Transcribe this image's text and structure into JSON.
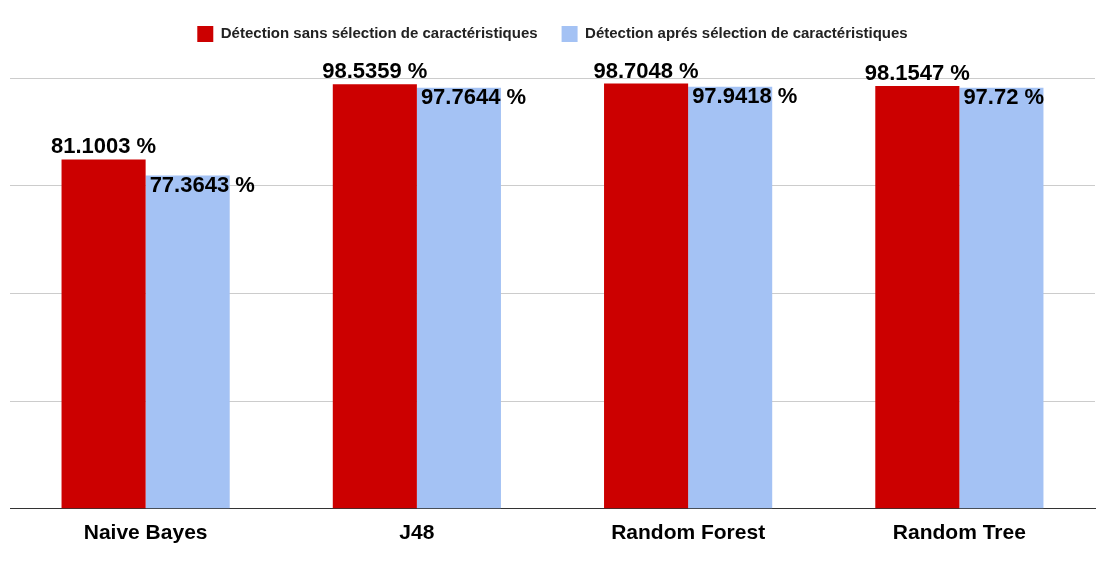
{
  "chart_data": {
    "type": "bar",
    "categories": [
      "Naive Bayes",
      "J48",
      "Random Forest",
      "Random Tree"
    ],
    "series": [
      {
        "name": "Détection sans sélection de caractéristiques",
        "color": "#cc0000",
        "values": [
          81.1003,
          98.5359,
          98.7048,
          98.1547
        ],
        "value_labels": [
          "81.1003 %",
          "98.5359 %",
          "98.7048 %",
          "98.1547 %"
        ]
      },
      {
        "name": "Détection aprés sélection de caractéristiques",
        "color": "#a4c2f4",
        "values": [
          77.3643,
          97.7644,
          97.9418,
          97.72
        ],
        "value_labels": [
          "77.3643 %",
          "97.7644 %",
          "97.9418 %",
          "97.72 %"
        ]
      }
    ],
    "ylim": [
      0,
      100
    ],
    "yticks": [
      {
        "value": 0,
        "label": null
      },
      {
        "value": 25,
        "label": null
      },
      {
        "value": 50,
        "label": null
      },
      {
        "value": 75,
        "label": null
      },
      {
        "value": 100,
        "label": null
      }
    ],
    "grid": "y",
    "legend": "top",
    "tick_labels": "x"
  }
}
